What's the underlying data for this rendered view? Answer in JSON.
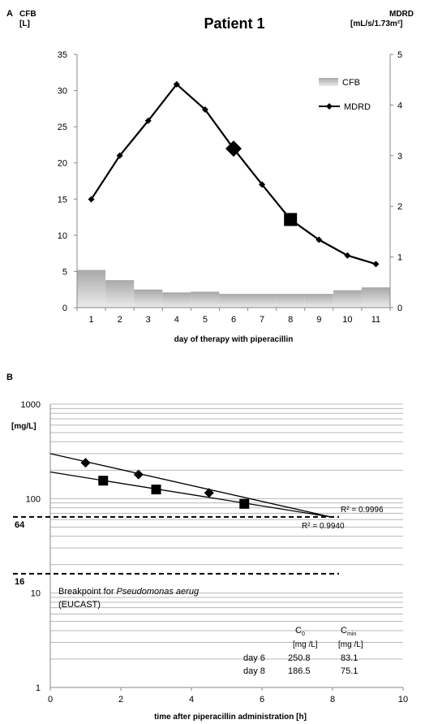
{
  "chart_data": [
    {
      "type": "bar+line",
      "panel_label": "A",
      "title": "Patient 1",
      "x": [
        1,
        2,
        3,
        4,
        5,
        6,
        7,
        8,
        9,
        10,
        11
      ],
      "xlabel": "day of therapy with piperacillin",
      "ylabel_left": [
        "CFB",
        "[L]"
      ],
      "ylabel_right": [
        "MDRD",
        "[mL/s/1.73m²]"
      ],
      "ylim_left": [
        0,
        35
      ],
      "yticks_left": [
        "0",
        "5",
        "10",
        "15",
        "20",
        "25",
        "30",
        "35"
      ],
      "ylim_right": [
        0,
        5
      ],
      "yticks_right": [
        "0",
        "1",
        "2",
        "3",
        "4",
        "5"
      ],
      "legend_position": "top-right",
      "series": [
        {
          "name": "CFB",
          "kind": "bar",
          "axis": "left",
          "color": "#c8c8c8",
          "values": [
            5.2,
            3.8,
            2.5,
            2.1,
            2.2,
            1.9,
            1.9,
            1.9,
            1.9,
            2.4,
            2.8
          ]
        },
        {
          "name": "MDRD",
          "kind": "line",
          "axis": "right",
          "color": "#000000",
          "values": [
            2.14,
            3.0,
            3.69,
            4.41,
            3.91,
            3.14,
            2.43,
            1.74,
            1.34,
            1.03,
            0.86
          ],
          "highlighted_days": [
            6,
            8
          ]
        }
      ]
    },
    {
      "type": "scatter",
      "panel_label": "B",
      "xlabel": "time after piperacillin  administration  [h]",
      "ylabel": "[mg/L]",
      "xlim": [
        0,
        10
      ],
      "xticks": [
        "0",
        "2",
        "4",
        "6",
        "8",
        "10"
      ],
      "ylim": [
        1,
        1000
      ],
      "yscale": "log",
      "yticks": [
        "1",
        "10",
        "100",
        "1000"
      ],
      "reference_lines": [
        {
          "y": 64,
          "label": "64",
          "style": "dashed"
        },
        {
          "y": 16,
          "label": "16",
          "style": "dashed",
          "annotation": [
            "Breakpoint for ",
            "Pseudomonas aerug",
            "(EUCAST)"
          ]
        }
      ],
      "series": [
        {
          "marker": "diamond",
          "x": [
            1,
            2.5,
            4.5
          ],
          "y": [
            240,
            180,
            115
          ],
          "fit_label": "R² = 0.9996"
        },
        {
          "marker": "square",
          "x": [
            1.5,
            3,
            5.5
          ],
          "y": [
            155,
            125,
            88
          ],
          "fit_label": "R² = 0.9940"
        }
      ],
      "table": {
        "headers": [
          [
            "C",
            "0",
            "[mg /L]"
          ],
          [
            "C",
            "min",
            "[mg /L]"
          ]
        ],
        "rows": [
          {
            "label": "day 6",
            "c0": "250.8",
            "cmin": "83.1"
          },
          {
            "label": "day 8",
            "c0": "186.5",
            "cmin": "75.1"
          }
        ]
      }
    }
  ]
}
